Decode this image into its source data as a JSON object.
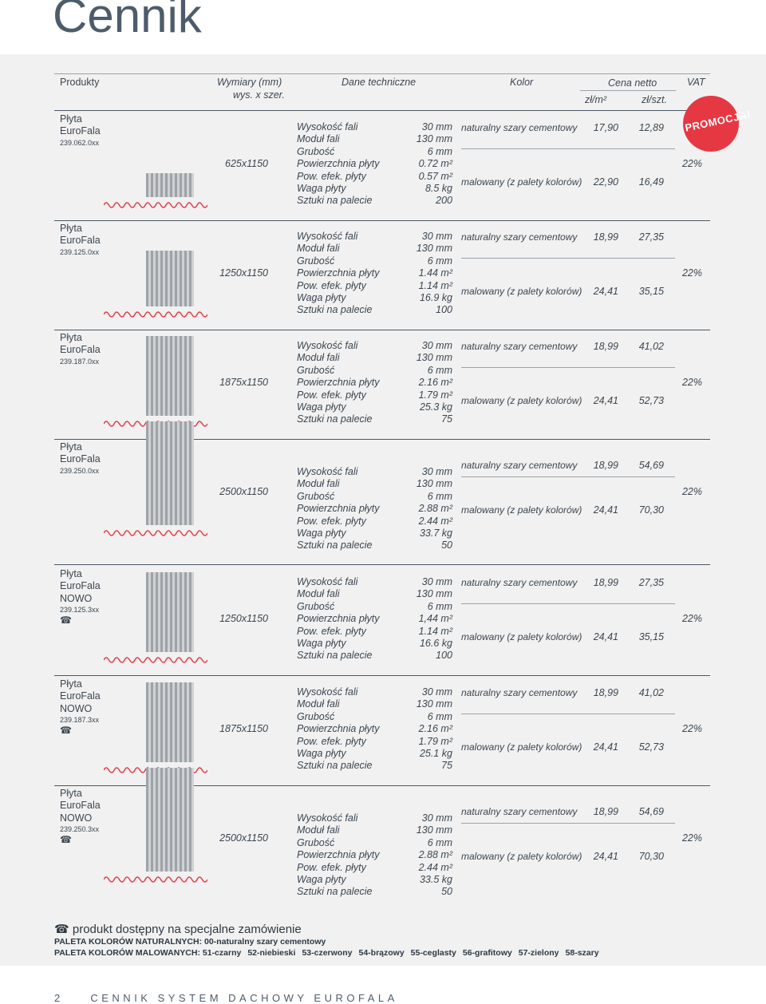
{
  "page_title": "Cennik",
  "header": {
    "products": "Produkty",
    "dims": "Wymiary (mm)",
    "dims_sub": "wys. x szer.",
    "tech": "Dane techniczne",
    "color": "Kolor",
    "price": "Cena netto",
    "price_m2": "zł/m²",
    "price_pc": "zł/szt.",
    "vat": "VAT"
  },
  "promo_label": "PROMOCJA!",
  "spec_labels": [
    "Wysokość fali",
    "Moduł fali",
    "Grubość",
    "Powierzchnia płyty",
    "Pow. efek. płyty",
    "Waga płyty",
    "Sztuki na palecie"
  ],
  "color_natural": "naturalny szary cementowy",
  "color_painted": "malowany (z palety kolorów)",
  "products": [
    {
      "name": "Płyta",
      "brand": "EuroFala",
      "variant": "",
      "code": "239.062.0xx",
      "phone": "",
      "dims": "625x1150",
      "specs": [
        "30 mm",
        "130 mm",
        "6 mm",
        "0.72 m²",
        "0.57 m²",
        "8.5 kg",
        "200"
      ],
      "nat_m2": "17,90",
      "nat_pc": "12,89",
      "pnt_m2": "22,90",
      "pnt_pc": "16,49",
      "vat": "22%"
    },
    {
      "name": "Płyta",
      "brand": "EuroFala",
      "variant": "",
      "code": "239.125.0xx",
      "phone": "",
      "dims": "1250x1150",
      "specs": [
        "30 mm",
        "130 mm",
        "6 mm",
        "1.44 m²",
        "1.14 m²",
        "16.9 kg",
        "100"
      ],
      "nat_m2": "18,99",
      "nat_pc": "27,35",
      "pnt_m2": "24,41",
      "pnt_pc": "35,15",
      "vat": "22%"
    },
    {
      "name": "Płyta",
      "brand": "EuroFala",
      "variant": "",
      "code": "239.187.0xx",
      "phone": "",
      "dims": "1875x1150",
      "specs": [
        "30 mm",
        "130 mm",
        "6 mm",
        "2.16 m²",
        "1.79 m²",
        "25.3 kg",
        "75"
      ],
      "nat_m2": "18,99",
      "nat_pc": "41,02",
      "pnt_m2": "24,41",
      "pnt_pc": "52,73",
      "vat": "22%"
    },
    {
      "name": "Płyta",
      "brand": "EuroFala",
      "variant": "",
      "code": "239.250.0xx",
      "phone": "",
      "dims": "2500x1150",
      "specs": [
        "30 mm",
        "130 mm",
        "6 mm",
        "2.88 m²",
        "2.44 m²",
        "33.7 kg",
        "50"
      ],
      "nat_m2": "18,99",
      "nat_pc": "54,69",
      "pnt_m2": "24,41",
      "pnt_pc": "70,30",
      "vat": "22%"
    },
    {
      "name": "Płyta",
      "brand": "EuroFala",
      "variant": "NOWO",
      "code": "239.125.3xx",
      "phone": "☎",
      "dims": "1250x1150",
      "specs": [
        "30 mm",
        "130 mm",
        "6 mm",
        "1,44 m²",
        "1.14 m²",
        "16.6 kg",
        "100"
      ],
      "nat_m2": "18,99",
      "nat_pc": "27,35",
      "pnt_m2": "24,41",
      "pnt_pc": "35,15",
      "vat": "22%"
    },
    {
      "name": "Płyta",
      "brand": "EuroFala",
      "variant": "NOWO",
      "code": "239.187.3xx",
      "phone": "☎",
      "dims": "1875x1150",
      "specs": [
        "30 mm",
        "130 mm",
        "6 mm",
        "2.16 m²",
        "1.79 m²",
        "25.1 kg",
        "75"
      ],
      "nat_m2": "18,99",
      "nat_pc": "41,02",
      "pnt_m2": "24,41",
      "pnt_pc": "52,73",
      "vat": "22%"
    },
    {
      "name": "Płyta",
      "brand": "EuroFala",
      "variant": "NOWO",
      "code": "239.250.3xx",
      "phone": "☎",
      "dims": "2500x1150",
      "specs": [
        "30 mm",
        "130 mm",
        "6 mm",
        "2.88 m²",
        "2.44 m²",
        "33.5 kg",
        "50"
      ],
      "nat_m2": "18,99",
      "nat_pc": "54,69",
      "pnt_m2": "24,41",
      "pnt_pc": "70,30",
      "vat": "22%"
    }
  ],
  "footer": {
    "phone_icon": "☎",
    "note": "produkt dostępny na specjalne zamówienie",
    "natural_label": "PALETA KOLORÓW NATURALNYCH:",
    "natural_value": "00-naturalny szary cementowy",
    "painted_label": "PALETA KOLORÓW MALOWANYCH:",
    "painted_items": [
      "51-czarny",
      "52-niebieski",
      "53-czerwony",
      "54-brązowy",
      "55-ceglasty",
      "56-grafitowy",
      "57-zielony",
      "58-szary"
    ]
  },
  "page_footer": {
    "number": "2",
    "text": "CENNIK SYSTEM DACHOWY EUROFALA"
  },
  "colors": {
    "accent_red": "#e63843",
    "title_gray": "#4d5c6a",
    "panel_bg": "#f1f1f1"
  }
}
